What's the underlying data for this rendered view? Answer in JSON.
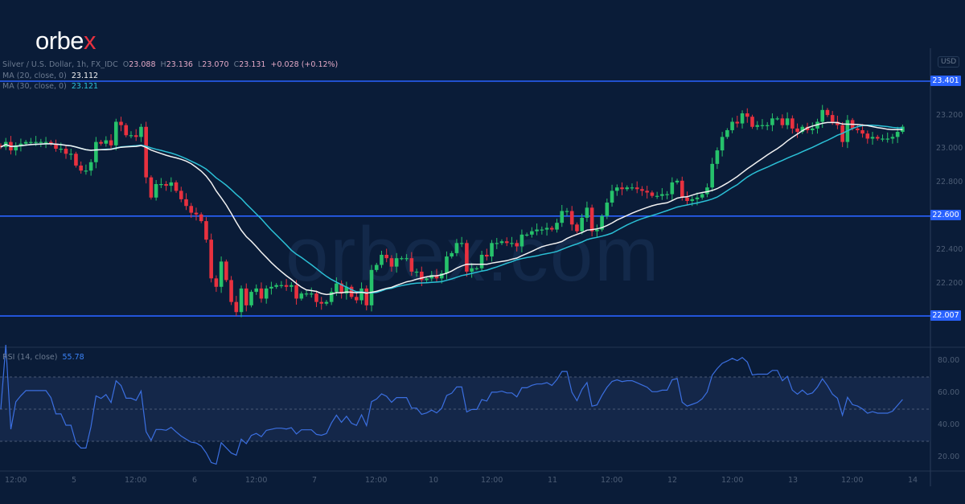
{
  "brand": {
    "logo_text": "orbex",
    "watermark": "orbex.com"
  },
  "header": {
    "symbol": "Silver / U.S. Dollar, 1h, FX_IDC",
    "open_label": "O",
    "open": "23.088",
    "high_label": "H",
    "high": "23.136",
    "low_label": "L",
    "low": "23.070",
    "close_label": "C",
    "close": "23.131",
    "change": "+0.028 (+0.12%)",
    "ma20_label": "MA (20, close, 0)",
    "ma20_value": "23.112",
    "ma30_label": "MA (30, close, 0)",
    "ma30_value": "23.121",
    "currency": "USD"
  },
  "rsi": {
    "label": "RSI (14, close)",
    "value": "55.78",
    "ticks": [
      "80.00",
      "60.00",
      "40.00",
      "20.00"
    ],
    "upper": 70,
    "lower": 30,
    "mid": 50
  },
  "colors": {
    "background": "#0a1c38",
    "up": "#26c26b",
    "down": "#e8313f",
    "ma20": "#f2f2f2",
    "ma30": "#2bc0d6",
    "level": "#2962ff",
    "rsi": "#3b6fe0"
  },
  "chart_data": {
    "type": "candlestick",
    "interval": "1h",
    "ylim": [
      21.85,
      23.47
    ],
    "y_ticks": [
      "23.200",
      "23.000",
      "22.800",
      "22.400",
      "22.200"
    ],
    "x_ticks": [
      "12:00",
      "5",
      "12:00",
      "6",
      "12:00",
      "7",
      "12:00",
      "10",
      "12:00",
      "11",
      "12:00",
      "12",
      "12:00",
      "13",
      "12:00",
      "14"
    ],
    "levels": [
      {
        "value": "23.401"
      },
      {
        "value": "22.600"
      },
      {
        "value": "22.007"
      }
    ],
    "close": [
      23.01,
      23.04,
      22.99,
      23.02,
      23.03,
      23.04,
      23.04,
      23.04,
      23.04,
      23.04,
      23.03,
      23.0,
      23.0,
      22.97,
      22.97,
      22.9,
      22.87,
      22.87,
      22.92,
      23.04,
      23.03,
      23.05,
      23.02,
      23.16,
      23.14,
      23.08,
      23.08,
      23.07,
      23.13,
      22.83,
      22.71,
      22.79,
      22.79,
      22.78,
      22.8,
      22.75,
      22.7,
      22.66,
      22.62,
      22.61,
      22.57,
      22.46,
      22.23,
      22.18,
      22.33,
      22.22,
      22.09,
      22.03,
      22.17,
      22.07,
      22.15,
      22.17,
      22.11,
      22.17,
      22.18,
      22.19,
      22.19,
      22.18,
      22.19,
      22.11,
      22.14,
      22.14,
      22.14,
      22.09,
      22.08,
      22.09,
      22.15,
      22.2,
      22.14,
      22.18,
      22.12,
      22.1,
      22.17,
      22.07,
      22.28,
      22.31,
      22.37,
      22.35,
      22.3,
      22.35,
      22.35,
      22.35,
      22.27,
      22.27,
      22.22,
      22.23,
      22.25,
      22.23,
      22.26,
      22.36,
      22.38,
      22.44,
      22.44,
      22.27,
      22.29,
      22.29,
      22.37,
      22.36,
      22.44,
      22.44,
      22.45,
      22.44,
      22.44,
      22.42,
      22.49,
      22.49,
      22.51,
      22.52,
      22.52,
      22.53,
      22.52,
      22.56,
      22.63,
      22.63,
      22.55,
      22.51,
      22.59,
      22.65,
      22.51,
      22.52,
      22.6,
      22.68,
      22.75,
      22.77,
      22.76,
      22.77,
      22.77,
      22.76,
      22.75,
      22.74,
      22.72,
      22.72,
      22.73,
      22.73,
      22.8,
      22.81,
      22.71,
      22.69,
      22.7,
      22.71,
      22.73,
      22.77,
      22.91,
      22.99,
      23.07,
      23.11,
      23.16,
      23.15,
      23.21,
      23.19,
      23.13,
      23.14,
      23.14,
      23.14,
      23.18,
      23.18,
      23.14,
      23.18,
      23.12,
      23.1,
      23.13,
      23.11,
      23.12,
      23.16,
      23.23,
      23.2,
      23.16,
      23.14,
      23.04,
      23.17,
      23.12,
      23.11,
      23.09,
      23.06,
      23.07,
      23.06,
      23.06,
      23.06,
      23.07,
      23.1,
      23.131
    ]
  }
}
